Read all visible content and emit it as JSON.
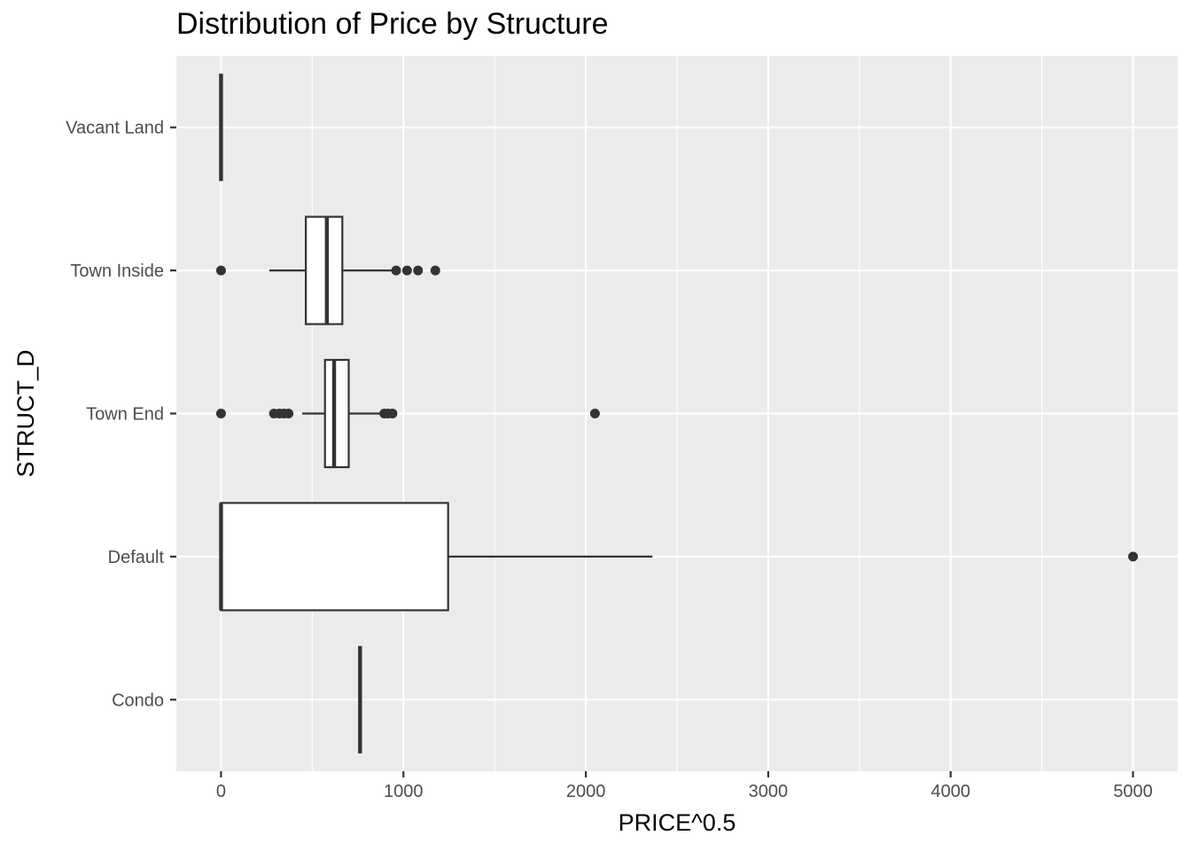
{
  "chart_data": {
    "type": "boxplot",
    "orientation": "horizontal",
    "title": "Distribution of Price by Structure",
    "xlabel": "PRICE^0.5",
    "ylabel": "STRUCT_D",
    "xlim": [
      -245,
      5245
    ],
    "xticks": [
      0,
      1000,
      2000,
      3000,
      4000,
      5000
    ],
    "xtick_labels": [
      "0",
      "1000",
      "2000",
      "3000",
      "4000",
      "5000"
    ],
    "grid": true,
    "colors": {
      "panel": "#EBEBEB",
      "grid": "#FFFFFF",
      "box_fill": "#FFFFFF",
      "box_line": "#333333",
      "outlier": "#333333"
    },
    "categories": [
      "Condo",
      "Default",
      "Town End",
      "Town Inside",
      "Vacant Land"
    ],
    "boxes": [
      {
        "category": "Condo",
        "whisker_low": 762,
        "q1": 762,
        "median": 762,
        "q3": 762,
        "whisker_high": 762,
        "outliers": []
      },
      {
        "category": "Default",
        "whisker_low": 0,
        "q1": 0,
        "median": 0,
        "q3": 1245,
        "whisker_high": 2365,
        "outliers": [
          5000
        ]
      },
      {
        "category": "Town End",
        "whisker_low": 445,
        "q1": 570,
        "median": 620,
        "q3": 700,
        "whisker_high": 880,
        "outliers": [
          0,
          290,
          320,
          345,
          370,
          895,
          915,
          940,
          2050
        ]
      },
      {
        "category": "Town Inside",
        "whisker_low": 265,
        "q1": 465,
        "median": 580,
        "q3": 665,
        "whisker_high": 940,
        "outliers": [
          0,
          960,
          1020,
          1080,
          1175
        ]
      },
      {
        "category": "Vacant Land",
        "whisker_low": 0,
        "q1": 0,
        "median": 0,
        "q3": 0,
        "whisker_high": 0,
        "outliers": []
      }
    ]
  }
}
